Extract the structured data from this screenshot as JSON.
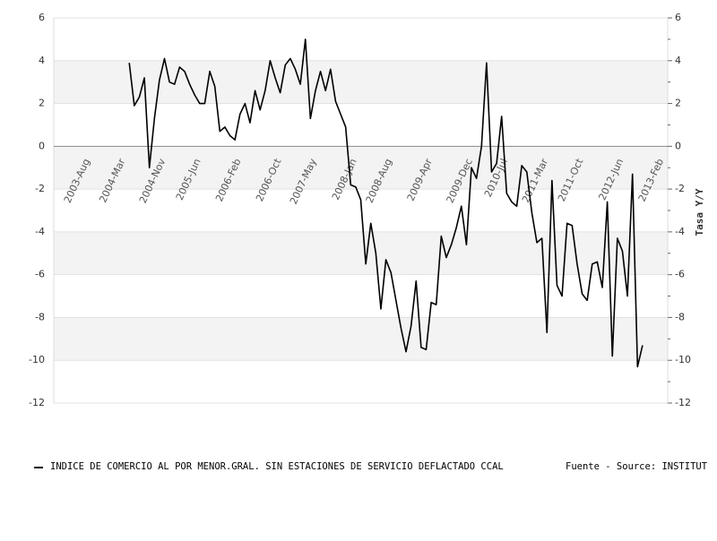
{
  "chart_data": {
    "type": "line",
    "y2label": "Tasa Y/Y",
    "categories": [
      null,
      null,
      null,
      null,
      null,
      null,
      "2003-Aug",
      null,
      null,
      null,
      null,
      null,
      null,
      "2004-Mar",
      null,
      null,
      null,
      null,
      null,
      null,
      null,
      "2004-Nov",
      null,
      null,
      null,
      null,
      null,
      null,
      "2005-Jun",
      null,
      null,
      null,
      null,
      null,
      null,
      null,
      "2006-Feb",
      null,
      null,
      null,
      null,
      null,
      null,
      null,
      "2006-Oct",
      null,
      null,
      null,
      null,
      null,
      null,
      "2007-May",
      null,
      null,
      null,
      null,
      null,
      null,
      null,
      "2008-Jan",
      null,
      null,
      null,
      null,
      null,
      null,
      "2008-Aug",
      null,
      null,
      null,
      null,
      null,
      null,
      null,
      "2009-Apr",
      null,
      null,
      null,
      null,
      null,
      null,
      null,
      "2009-Dec",
      null,
      null,
      null,
      null,
      null,
      null,
      "2010-Jul",
      null,
      null,
      null,
      null,
      null,
      null,
      null,
      "2011-Mar",
      null,
      null,
      null,
      null,
      null,
      null,
      "2011-Oct",
      null,
      null,
      null,
      null,
      null,
      null,
      null,
      "2012-Jun",
      null,
      null,
      null,
      null,
      null,
      null,
      null,
      "2013-Feb",
      null,
      null
    ],
    "series": [
      {
        "name": "INDICE DE COMERCIO AL POR MENOR.GRAL. SIN ESTACIONES DE SERVICIO DEFLACTADO CCAL",
        "color": "#000000",
        "values": [
          null,
          null,
          null,
          null,
          null,
          null,
          null,
          null,
          null,
          null,
          null,
          null,
          null,
          null,
          null,
          3.9,
          1.9,
          2.3,
          3.2,
          -1.0,
          1.3,
          3.1,
          4.1,
          3.0,
          2.9,
          3.7,
          3.5,
          2.9,
          2.4,
          2.0,
          2.0,
          3.5,
          2.8,
          0.7,
          0.9,
          0.5,
          0.3,
          1.5,
          2.0,
          1.1,
          2.6,
          1.7,
          2.6,
          4.0,
          3.2,
          2.5,
          3.8,
          4.1,
          3.6,
          2.9,
          5.0,
          1.3,
          2.6,
          3.5,
          2.6,
          3.6,
          2.1,
          1.5,
          0.9,
          -1.8,
          -1.9,
          -2.5,
          -5.5,
          -3.6,
          -5.0,
          -7.6,
          -5.3,
          -5.9,
          -7.2,
          -8.5,
          -9.6,
          -8.4,
          -6.3,
          -9.4,
          -9.5,
          -7.3,
          -7.4,
          -4.2,
          -5.2,
          -4.6,
          -3.8,
          -2.8,
          -4.6,
          -1.0,
          -1.5,
          0.0,
          3.9,
          -1.2,
          -0.8,
          1.4,
          -2.2,
          -2.6,
          -2.8,
          -0.9,
          -1.2,
          -3.1,
          -4.5,
          -4.3,
          -8.7,
          -1.6,
          -6.5,
          -7.0,
          -3.6,
          -3.7,
          -5.5,
          -6.9,
          -7.2,
          -5.5,
          -5.4,
          -6.6,
          -2.6,
          -9.8,
          -4.3,
          -4.9,
          -7.0,
          -1.3,
          -10.3,
          -9.3,
          null,
          null,
          null,
          null,
          null
        ]
      }
    ],
    "source": "Fuente - Source: INSTITUT",
    "ylim": [
      -12,
      6
    ],
    "yticks": [
      -12,
      -10,
      -8,
      -6,
      -4,
      -2,
      0,
      2,
      4,
      6
    ],
    "y2lim": [
      -12,
      6
    ],
    "y2ticks": [
      -12,
      -10,
      -8,
      -6,
      -4,
      -2,
      0,
      2,
      4,
      6
    ]
  }
}
